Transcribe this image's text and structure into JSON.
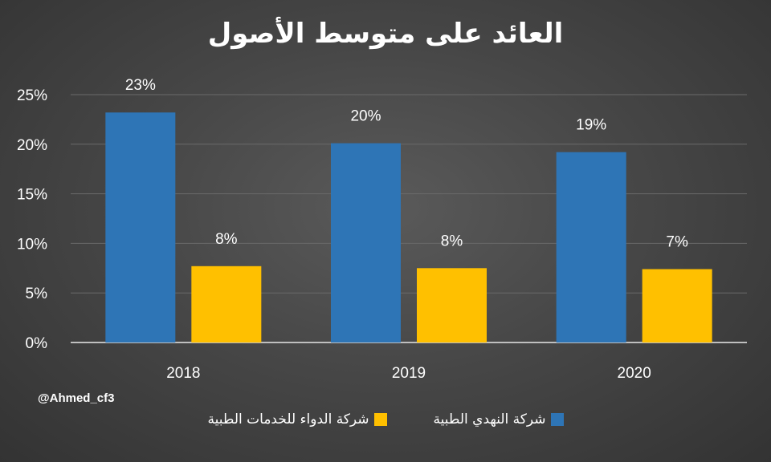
{
  "colors": {
    "series_1": "#2e75b6",
    "series_2": "#ffc000",
    "text": "#ffffff",
    "gridline": "#6a6a6a",
    "axis": "#bfbfbf"
  },
  "watermark": "@Ahmed_cf3",
  "chart_data": {
    "type": "bar",
    "title": "العائد على متوسط الأصول",
    "categories": [
      "2018",
      "2019",
      "2020"
    ],
    "series": [
      {
        "name": "شركة النهدي الطبية",
        "values": [
          23.2,
          20.1,
          19.2
        ],
        "labels": [
          "23%",
          "20%",
          "19%"
        ]
      },
      {
        "name": "شركة الدواء للخدمات الطبية",
        "values": [
          7.7,
          7.5,
          7.4
        ],
        "labels": [
          "8%",
          "8%",
          "7%"
        ]
      }
    ],
    "ylim": [
      0,
      25
    ],
    "y_ticks": [
      0,
      5,
      10,
      15,
      20,
      25
    ],
    "y_tick_labels": [
      "0%",
      "5%",
      "10%",
      "15%",
      "20%",
      "25%"
    ],
    "grid": true,
    "legend_position": "bottom"
  }
}
